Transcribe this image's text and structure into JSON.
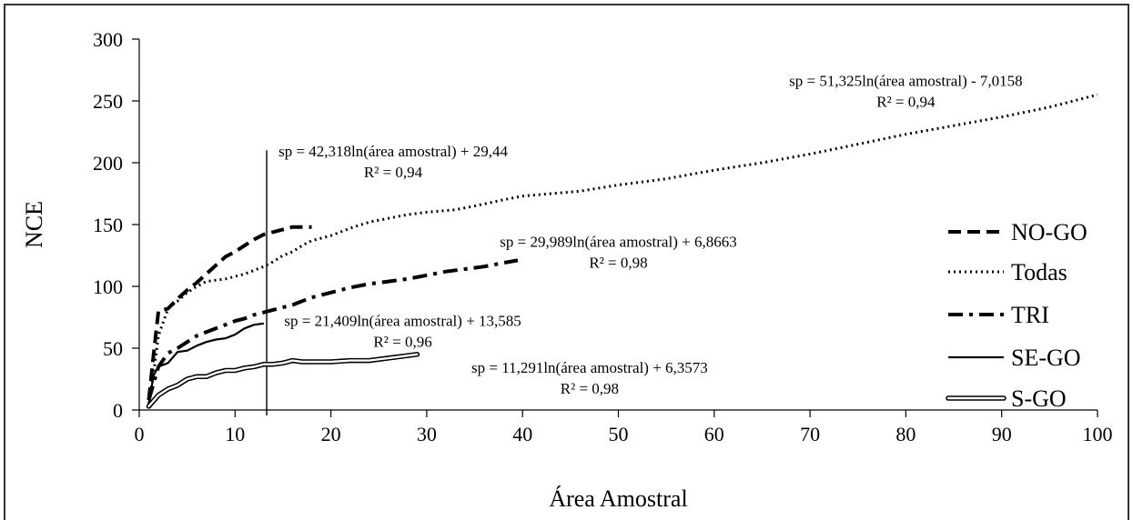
{
  "chart_data": {
    "type": "line",
    "xlabel": "Área Amostral",
    "ylabel": "NCE",
    "xlim": [
      0,
      100
    ],
    "ylim": [
      0,
      300
    ],
    "xticks": [
      "0",
      "10",
      "20",
      "30",
      "40",
      "50",
      "60",
      "70",
      "80",
      "90",
      "100"
    ],
    "yticks": [
      "0",
      "50",
      "100",
      "150",
      "200",
      "250",
      "300"
    ],
    "grid": false,
    "legend_position": "right",
    "vertical_line": {
      "x": 13.3,
      "y_top": 210
    },
    "series": [
      {
        "name": "NO-GO",
        "style": "dashed",
        "color": "#000000",
        "x": [
          1,
          1.5,
          2,
          3,
          4,
          5,
          6,
          7,
          8,
          9,
          10,
          11,
          12,
          13,
          14,
          15,
          16,
          17,
          18
        ],
        "y": [
          8,
          45,
          80,
          82,
          90,
          97,
          103,
          110,
          117,
          124,
          128,
          133,
          138,
          142,
          144,
          146,
          148,
          148,
          148
        ]
      },
      {
        "name": "Todas",
        "style": "dotted",
        "color": "#000000",
        "x": [
          1,
          1.5,
          2,
          3,
          4,
          5,
          6,
          7,
          8,
          9,
          10,
          11,
          12,
          13,
          14,
          15,
          16,
          17,
          18,
          19,
          20,
          22,
          24,
          26,
          28,
          30,
          33,
          35,
          38,
          40,
          43,
          46,
          50,
          55,
          60,
          65,
          70,
          75,
          80,
          85,
          90,
          95,
          100
        ],
        "y": [
          5,
          30,
          60,
          82,
          88,
          95,
          100,
          104,
          105,
          106,
          108,
          110,
          113,
          116,
          120,
          125,
          128,
          133,
          137,
          139,
          141,
          147,
          152,
          155,
          158,
          160,
          162,
          165,
          170,
          173,
          175,
          177,
          182,
          187,
          194,
          200,
          207,
          215,
          223,
          230,
          237,
          245,
          255
        ]
      },
      {
        "name": "TRI",
        "style": "dashdot",
        "color": "#000000",
        "x": [
          1,
          2,
          3,
          4,
          5,
          6,
          7,
          8,
          9,
          10,
          11,
          12,
          13,
          14,
          15,
          16,
          17,
          18,
          19,
          20,
          22,
          24,
          26,
          28,
          30,
          32,
          34,
          36,
          38,
          39.5
        ],
        "y": [
          8,
          35,
          46,
          50,
          55,
          60,
          63,
          66,
          69,
          72,
          74,
          77,
          79,
          81,
          83,
          85,
          88,
          91,
          93,
          95,
          99,
          102,
          104,
          106,
          109,
          112,
          114,
          116,
          119,
          121
        ]
      },
      {
        "name": "SE-GO",
        "style": "solid",
        "color": "#000000",
        "x": [
          1,
          1.5,
          2,
          3,
          4,
          5,
          6,
          7,
          8,
          9,
          10,
          11,
          12,
          13
        ],
        "y": [
          5,
          28,
          35,
          38,
          47,
          48,
          52,
          55,
          57,
          58,
          61,
          66,
          69,
          70
        ]
      },
      {
        "name": "S-GO",
        "style": "double",
        "color": "#000000",
        "x": [
          1,
          2,
          3,
          4,
          5,
          6,
          7,
          8,
          9,
          10,
          11,
          12,
          13,
          14,
          15,
          16,
          17,
          18,
          19,
          20,
          22,
          24,
          26,
          28,
          29
        ],
        "y": [
          3,
          12,
          17,
          20,
          25,
          27,
          27,
          30,
          32,
          32,
          34,
          35,
          37,
          37,
          38,
          40,
          39,
          39,
          39,
          39,
          40,
          40,
          42,
          44,
          45
        ]
      }
    ],
    "annotations": [
      {
        "lines": [
          "sp = 51,325ln(área amostral) - 7,0158",
          "R² = 0,94"
        ],
        "x": 80,
        "y": 262
      },
      {
        "lines": [
          "sp = 42,318ln(área amostral) + 29,44",
          "R² = 0,94"
        ],
        "x": 26.5,
        "y": 205
      },
      {
        "lines": [
          "sp = 29,989ln(área amostral) + 6,8663",
          "R² = 0,98"
        ],
        "x": 50,
        "y": 132
      },
      {
        "lines": [
          "sp = 21,409ln(área amostral) + 13,585",
          "R² = 0,96"
        ],
        "x": 27.5,
        "y": 68
      },
      {
        "lines": [
          "sp = 11,291ln(área amostral) + 6,3573",
          "R² = 0,98"
        ],
        "x": 47,
        "y": 30
      }
    ]
  }
}
